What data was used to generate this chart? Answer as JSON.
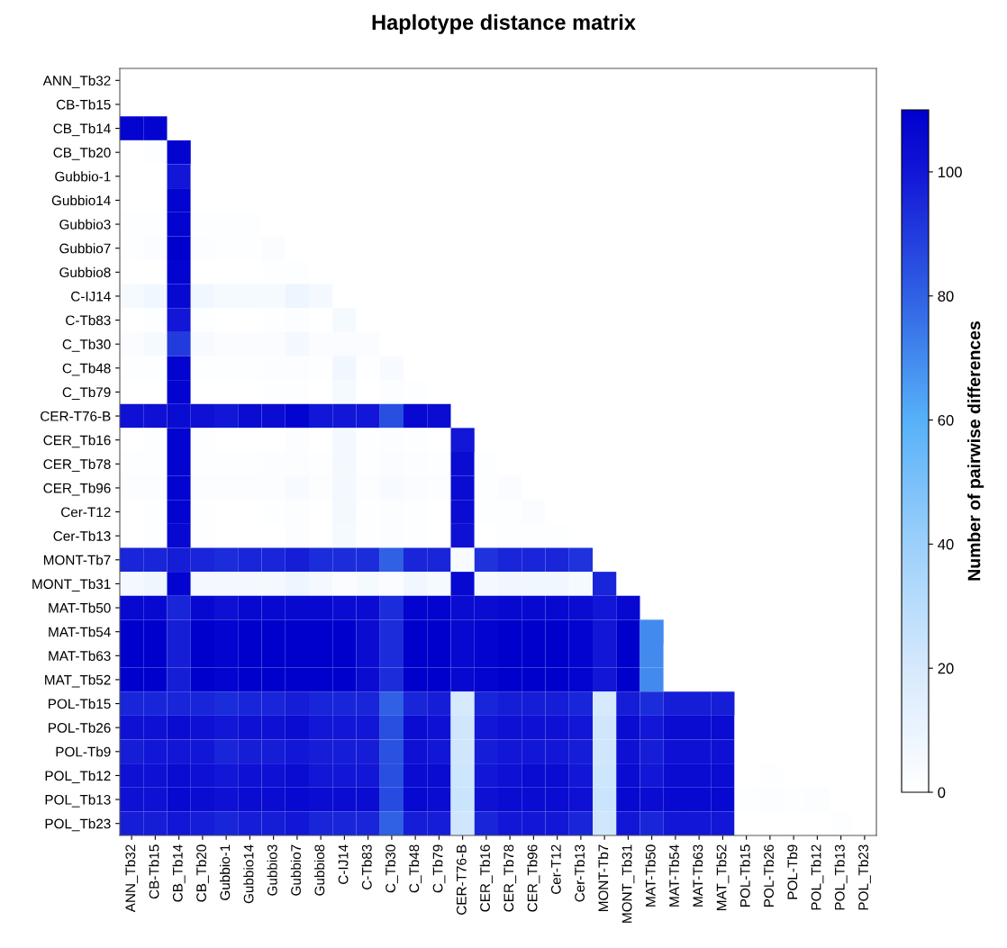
{
  "chart_data": {
    "type": "heatmap",
    "title": "Haplotype distance matrix",
    "clabel": "Number of pairwise differences",
    "categories": [
      "ANN_Tb32",
      "CB-Tb15",
      "CB_Tb14",
      "CB_Tb20",
      "Gubbio-1",
      "Gubbio14",
      "Gubbio3",
      "Gubbio7",
      "Gubbio8",
      "C-IJ14",
      "C-Tb83",
      "C_Tb30",
      "C_Tb48",
      "C_Tb79",
      "CER-T76-B",
      "CER_Tb16",
      "CER_Tb78",
      "CER_Tb96",
      "Cer-T12",
      "Cer-Tb13",
      "MONT-Tb7",
      "MONT_Tb31",
      "MAT-Tb50",
      "MAT-Tb54",
      "MAT-Tb63",
      "MAT_Tb52",
      "POL-Tb15",
      "POL-Tb26",
      "POL-Tb9",
      "POL_Tb12",
      "POL_Tb13",
      "POL_Tb23"
    ],
    "y_categories": [
      "ANN_Tb32",
      "CB-Tb15",
      "CB_Tb14",
      "CB_Tb20",
      "Gubbio-1",
      "Gubbio14",
      "Gubbio3",
      "Gubbio7",
      "Gubbio8",
      "C-IJ14",
      "C-Tb83",
      "C_Tb30",
      "C_Tb48",
      "C_Tb79",
      "CER-T76-B",
      "CER_Tb16",
      "CER_Tb78",
      "CER_Tb96",
      "Cer-T12",
      "Cer-Tb13",
      "MONT-Tb7",
      "MONT_Tb31",
      "MAT-Tb50",
      "MAT-Tb54",
      "MAT-Tb63",
      "MAT_Tb52",
      "POL-Tb15",
      "POL-Tb26",
      "POL-Tb9",
      "POL_Tb12",
      "POL_Tb13",
      "POL_Tb23"
    ],
    "clim": [
      0,
      110
    ],
    "cticks": [
      0,
      20,
      40,
      60,
      80,
      100
    ],
    "cells": [
      [
        null,
        null,
        null,
        null,
        null,
        null,
        null,
        null,
        null,
        null,
        null,
        null,
        null,
        null,
        null,
        null,
        null,
        null,
        null,
        null,
        null,
        null,
        null,
        null,
        null,
        null,
        null,
        null,
        null,
        null,
        null,
        null
      ],
      [
        0,
        null,
        null,
        null,
        null,
        null,
        null,
        null,
        null,
        null,
        null,
        null,
        null,
        null,
        null,
        null,
        null,
        null,
        null,
        null,
        null,
        null,
        null,
        null,
        null,
        null,
        null,
        null,
        null,
        null,
        null,
        null
      ],
      [
        108,
        108,
        null,
        null,
        null,
        null,
        null,
        null,
        null,
        null,
        null,
        null,
        null,
        null,
        null,
        null,
        null,
        null,
        null,
        null,
        null,
        null,
        null,
        null,
        null,
        null,
        null,
        null,
        null,
        null,
        null,
        null
      ],
      [
        0,
        1,
        108,
        null,
        null,
        null,
        null,
        null,
        null,
        null,
        null,
        null,
        null,
        null,
        null,
        null,
        null,
        null,
        null,
        null,
        null,
        null,
        null,
        null,
        null,
        null,
        null,
        null,
        null,
        null,
        null,
        null
      ],
      [
        0,
        0,
        100,
        0,
        null,
        null,
        null,
        null,
        null,
        null,
        null,
        null,
        null,
        null,
        null,
        null,
        null,
        null,
        null,
        null,
        null,
        null,
        null,
        null,
        null,
        null,
        null,
        null,
        null,
        null,
        null,
        null
      ],
      [
        0,
        0,
        108,
        0,
        0,
        null,
        null,
        null,
        null,
        null,
        null,
        null,
        null,
        null,
        null,
        null,
        null,
        null,
        null,
        null,
        null,
        null,
        null,
        null,
        null,
        null,
        null,
        null,
        null,
        null,
        null,
        null
      ],
      [
        1,
        1,
        108,
        1,
        1,
        1,
        null,
        null,
        null,
        null,
        null,
        null,
        null,
        null,
        null,
        null,
        null,
        null,
        null,
        null,
        null,
        null,
        null,
        null,
        null,
        null,
        null,
        null,
        null,
        null,
        null,
        null
      ],
      [
        1,
        3,
        110,
        2,
        1,
        1,
        3,
        null,
        null,
        null,
        null,
        null,
        null,
        null,
        null,
        null,
        null,
        null,
        null,
        null,
        null,
        null,
        null,
        null,
        null,
        null,
        null,
        null,
        null,
        null,
        null,
        null
      ],
      [
        0,
        0,
        108,
        0,
        0,
        0,
        1,
        1,
        null,
        null,
        null,
        null,
        null,
        null,
        null,
        null,
        null,
        null,
        null,
        null,
        null,
        null,
        null,
        null,
        null,
        null,
        null,
        null,
        null,
        null,
        null,
        null
      ],
      [
        5,
        7,
        106,
        7,
        5,
        5,
        5,
        9,
        6,
        null,
        null,
        null,
        null,
        null,
        null,
        null,
        null,
        null,
        null,
        null,
        null,
        null,
        null,
        null,
        null,
        null,
        null,
        null,
        null,
        null,
        null,
        null
      ],
      [
        0,
        1,
        100,
        1,
        0,
        0,
        1,
        2,
        0,
        5,
        null,
        null,
        null,
        null,
        null,
        null,
        null,
        null,
        null,
        null,
        null,
        null,
        null,
        null,
        null,
        null,
        null,
        null,
        null,
        null,
        null,
        null
      ],
      [
        3,
        5,
        90,
        4,
        3,
        3,
        3,
        6,
        3,
        3,
        3,
        null,
        null,
        null,
        null,
        null,
        null,
        null,
        null,
        null,
        null,
        null,
        null,
        null,
        null,
        null,
        null,
        null,
        null,
        null,
        null,
        null
      ],
      [
        1,
        1,
        108,
        1,
        1,
        1,
        2,
        2,
        1,
        7,
        1,
        4,
        null,
        null,
        null,
        null,
        null,
        null,
        null,
        null,
        null,
        null,
        null,
        null,
        null,
        null,
        null,
        null,
        null,
        null,
        null,
        null
      ],
      [
        0,
        0,
        108,
        0,
        0,
        0,
        1,
        1,
        0,
        5,
        0,
        2,
        1,
        null,
        null,
        null,
        null,
        null,
        null,
        null,
        null,
        null,
        null,
        null,
        null,
        null,
        null,
        null,
        null,
        null,
        null,
        null
      ],
      [
        102,
        102,
        104,
        102,
        100,
        104,
        104,
        108,
        100,
        100,
        100,
        85,
        106,
        104,
        null,
        null,
        null,
        null,
        null,
        null,
        null,
        null,
        null,
        null,
        null,
        null,
        null,
        null,
        null,
        null,
        null,
        null
      ],
      [
        0,
        1,
        108,
        1,
        0,
        0,
        0,
        2,
        0,
        6,
        1,
        2,
        1,
        0,
        100,
        null,
        null,
        null,
        null,
        null,
        null,
        null,
        null,
        null,
        null,
        null,
        null,
        null,
        null,
        null,
        null,
        null
      ],
      [
        1,
        1,
        108,
        1,
        1,
        1,
        2,
        2,
        1,
        6,
        1,
        3,
        2,
        1,
        104,
        1,
        null,
        null,
        null,
        null,
        null,
        null,
        null,
        null,
        null,
        null,
        null,
        null,
        null,
        null,
        null,
        null
      ],
      [
        2,
        2,
        108,
        2,
        2,
        2,
        2,
        4,
        2,
        6,
        2,
        4,
        3,
        2,
        104,
        1,
        3,
        null,
        null,
        null,
        null,
        null,
        null,
        null,
        null,
        null,
        null,
        null,
        null,
        null,
        null,
        null
      ],
      [
        0,
        1,
        108,
        1,
        0,
        0,
        1,
        2,
        0,
        6,
        1,
        2,
        1,
        0,
        104,
        1,
        1,
        3,
        null,
        null,
        null,
        null,
        null,
        null,
        null,
        null,
        null,
        null,
        null,
        null,
        null,
        null
      ],
      [
        0,
        1,
        106,
        1,
        0,
        0,
        0,
        2,
        0,
        5,
        1,
        2,
        1,
        0,
        102,
        0,
        1,
        1,
        1,
        null,
        null,
        null,
        null,
        null,
        null,
        null,
        null,
        null,
        null,
        null,
        null,
        null
      ],
      [
        96,
        96,
        98,
        96,
        94,
        96,
        96,
        98,
        94,
        94,
        94,
        80,
        96,
        96,
        4,
        92,
        96,
        96,
        96,
        92,
        null,
        null,
        null,
        null,
        null,
        null,
        null,
        null,
        null,
        null,
        null,
        null
      ],
      [
        6,
        8,
        108,
        6,
        6,
        6,
        6,
        9,
        6,
        3,
        5,
        3,
        7,
        5,
        106,
        6,
        7,
        7,
        7,
        5,
        96,
        null,
        null,
        null,
        null,
        null,
        null,
        null,
        null,
        null,
        null,
        null
      ],
      [
        106,
        106,
        96,
        106,
        102,
        106,
        106,
        106,
        106,
        104,
        104,
        94,
        108,
        108,
        104,
        104,
        106,
        106,
        106,
        104,
        100,
        106,
        null,
        null,
        null,
        null,
        null,
        null,
        null,
        null,
        null,
        null
      ],
      [
        110,
        110,
        98,
        110,
        108,
        110,
        110,
        110,
        110,
        110,
        104,
        94,
        110,
        110,
        106,
        108,
        110,
        110,
        110,
        108,
        100,
        110,
        70,
        null,
        null,
        null,
        null,
        null,
        null,
        null,
        null,
        null
      ],
      [
        110,
        110,
        98,
        110,
        108,
        110,
        110,
        110,
        110,
        110,
        104,
        94,
        110,
        110,
        106,
        108,
        110,
        110,
        110,
        108,
        100,
        110,
        70,
        0,
        null,
        null,
        null,
        null,
        null,
        null,
        null,
        null
      ],
      [
        110,
        110,
        98,
        110,
        108,
        110,
        110,
        110,
        110,
        110,
        104,
        94,
        110,
        110,
        106,
        108,
        110,
        110,
        110,
        108,
        100,
        110,
        70,
        0,
        0,
        null,
        null,
        null,
        null,
        null,
        null,
        null
      ],
      [
        96,
        96,
        96,
        96,
        94,
        96,
        96,
        98,
        96,
        96,
        96,
        80,
        96,
        98,
        20,
        96,
        98,
        98,
        98,
        96,
        20,
        98,
        94,
        98,
        98,
        98,
        null,
        null,
        null,
        null,
        null,
        null
      ],
      [
        102,
        102,
        104,
        102,
        100,
        102,
        102,
        104,
        100,
        100,
        100,
        85,
        104,
        102,
        22,
        100,
        102,
        102,
        102,
        100,
        22,
        104,
        100,
        104,
        104,
        104,
        0,
        null,
        null,
        null,
        null,
        null
      ],
      [
        98,
        100,
        100,
        100,
        96,
        98,
        98,
        100,
        98,
        98,
        98,
        84,
        102,
        100,
        22,
        98,
        100,
        100,
        100,
        98,
        22,
        102,
        98,
        102,
        102,
        102,
        0,
        0,
        null,
        null,
        null,
        null
      ],
      [
        102,
        102,
        104,
        102,
        100,
        102,
        102,
        104,
        100,
        100,
        100,
        85,
        104,
        104,
        23,
        100,
        102,
        104,
        104,
        100,
        23,
        104,
        100,
        104,
        104,
        104,
        0,
        1,
        0,
        null,
        null,
        null
      ],
      [
        102,
        102,
        106,
        104,
        102,
        104,
        104,
        106,
        104,
        104,
        104,
        86,
        106,
        104,
        24,
        102,
        104,
        104,
        104,
        102,
        24,
        106,
        104,
        106,
        106,
        106,
        1,
        2,
        1,
        2,
        null,
        null
      ],
      [
        98,
        98,
        100,
        98,
        96,
        98,
        98,
        100,
        96,
        96,
        96,
        80,
        98,
        98,
        22,
        96,
        100,
        100,
        100,
        96,
        22,
        100,
        96,
        100,
        100,
        100,
        0,
        0,
        0,
        0,
        1,
        null
      ]
    ]
  }
}
